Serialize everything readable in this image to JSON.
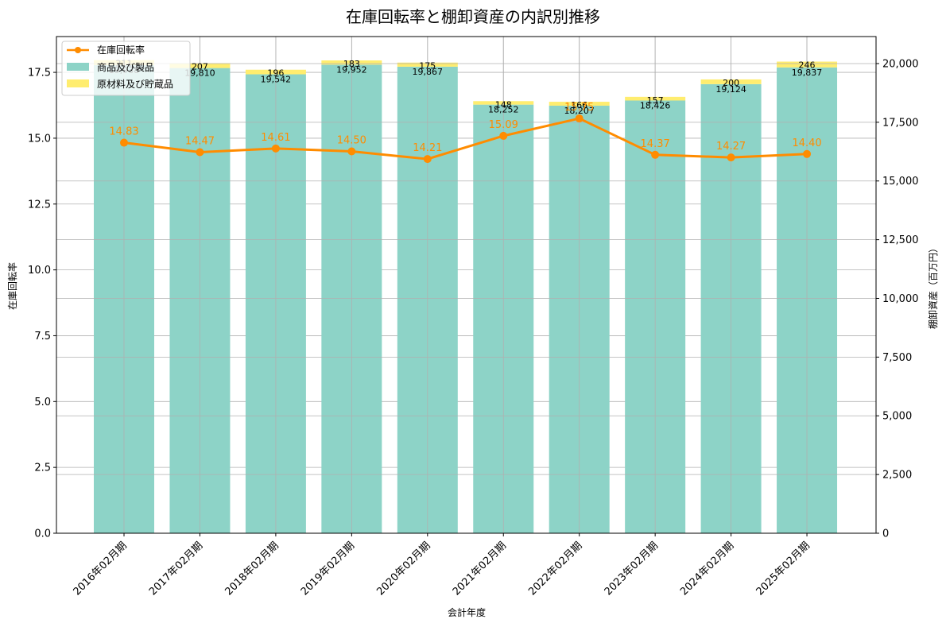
{
  "chart_data": {
    "type": "bar+line",
    "title": "在庫回転率と棚卸資産の内訳別推移",
    "xlabel": "会計年度",
    "ylabel_left": "在庫回転率",
    "ylabel_right": "棚卸資産（百万円）",
    "categories": [
      "2016年02月期",
      "2017年02月期",
      "2018年02月期",
      "2019年02月期",
      "2020年02月期",
      "2021年02月期",
      "2022年02月期",
      "2023年02月期",
      "2024年02月期",
      "2025年02月期"
    ],
    "series": [
      {
        "name": "商品及び製品",
        "type": "stacked-bar",
        "axis": "right",
        "color": "#8dd3c7",
        "values": [
          19938,
          19810,
          19542,
          19952,
          19867,
          18252,
          18207,
          18426,
          19124,
          19837
        ]
      },
      {
        "name": "原材料及び貯蔵品",
        "type": "stacked-bar",
        "axis": "right",
        "color": "#ffed6f",
        "values": [
          211,
          207,
          196,
          183,
          175,
          148,
          166,
          157,
          200,
          246
        ]
      },
      {
        "name": "在庫回転率",
        "type": "line",
        "axis": "left",
        "color": "#ff8c00",
        "values": [
          14.83,
          14.47,
          14.61,
          14.5,
          14.21,
          15.09,
          15.75,
          14.37,
          14.27,
          14.4
        ]
      }
    ],
    "left_axis": {
      "ylim": [
        0,
        18.86
      ],
      "ticks": [
        "0.0",
        "2.5",
        "5.0",
        "7.5",
        "10.0",
        "12.5",
        "15.0",
        "17.5"
      ]
    },
    "right_axis": {
      "ylim": [
        0,
        21150
      ],
      "ticks": [
        "0",
        "2,500",
        "5,000",
        "7,500",
        "10,000",
        "12,500",
        "15,000",
        "17,500",
        "20,000"
      ]
    },
    "grid": true,
    "legend_position": "upper left"
  },
  "legend": {
    "items": [
      {
        "label": "在庫回転率",
        "color": "#ff8c00",
        "kind": "line"
      },
      {
        "label": "商品及び製品",
        "color": "#8dd3c7",
        "kind": "patch"
      },
      {
        "label": "原材料及び貯蔵品",
        "color": "#ffed6f",
        "kind": "patch"
      }
    ]
  }
}
